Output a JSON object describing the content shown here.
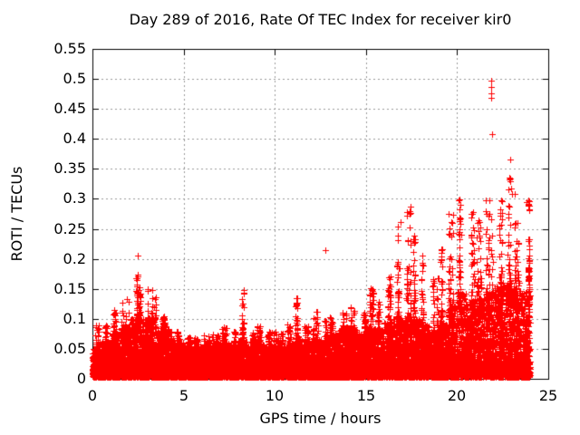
{
  "chart_data": {
    "type": "scatter",
    "title": "Day 289 of 2016, Rate Of TEC Index for receiver kir0",
    "xlabel": "GPS time / hours",
    "ylabel": "ROTI / TECUs",
    "xlim": [
      0,
      25
    ],
    "ylim": [
      0,
      0.55
    ],
    "xtick_values": [
      0,
      5,
      10,
      15,
      20,
      25
    ],
    "xtick_labels": [
      "0",
      "5",
      "10",
      "15",
      "20",
      "25"
    ],
    "ytick_values": [
      0,
      0.05,
      0.1,
      0.15,
      0.2,
      0.25,
      0.3,
      0.35,
      0.4,
      0.45,
      0.5,
      0.55
    ],
    "ytick_labels": [
      "0",
      "0.05",
      "0.1",
      "0.15",
      "0.2",
      "0.25",
      "0.3",
      "0.35",
      "0.4",
      "0.45",
      "0.5",
      "0.55"
    ],
    "grid": true,
    "grid_style": "dashed",
    "grid_color": "#999999",
    "frame_color": "#000000",
    "background": "#ffffff",
    "legend": false,
    "marker": "plus",
    "marker_size": 7,
    "marker_color": "#ff0000",
    "series_name": "ROTI",
    "data_model": {
      "description": "Dense GNSS ROTI scatter vs GPS time. Envelope per half-hour bin: [start_hour, dense_band_top_TECU, spike_max_TECU]. Values read from plot.",
      "bins": [
        [
          0.0,
          0.05,
          0.09
        ],
        [
          0.5,
          0.06,
          0.09
        ],
        [
          1.0,
          0.075,
          0.115
        ],
        [
          1.5,
          0.085,
          0.135
        ],
        [
          2.0,
          0.1,
          0.175
        ],
        [
          2.5,
          0.1,
          0.155
        ],
        [
          3.0,
          0.105,
          0.15
        ],
        [
          3.5,
          0.08,
          0.105
        ],
        [
          4.0,
          0.065,
          0.085
        ],
        [
          4.5,
          0.06,
          0.08
        ],
        [
          5.0,
          0.055,
          0.07
        ],
        [
          5.5,
          0.055,
          0.07
        ],
        [
          6.0,
          0.055,
          0.072
        ],
        [
          6.5,
          0.055,
          0.075
        ],
        [
          7.0,
          0.06,
          0.09
        ],
        [
          7.5,
          0.058,
          0.08
        ],
        [
          8.0,
          0.065,
          0.15
        ],
        [
          8.5,
          0.058,
          0.08
        ],
        [
          9.0,
          0.058,
          0.088
        ],
        [
          9.5,
          0.055,
          0.08
        ],
        [
          10.0,
          0.055,
          0.08
        ],
        [
          10.5,
          0.058,
          0.092
        ],
        [
          11.0,
          0.065,
          0.145
        ],
        [
          11.5,
          0.058,
          0.09
        ],
        [
          12.0,
          0.065,
          0.12
        ],
        [
          12.5,
          0.065,
          0.1
        ],
        [
          13.0,
          0.075,
          0.105
        ],
        [
          13.5,
          0.085,
          0.115
        ],
        [
          14.0,
          0.085,
          0.12
        ],
        [
          14.5,
          0.075,
          0.11
        ],
        [
          15.0,
          0.085,
          0.16
        ],
        [
          15.5,
          0.085,
          0.13
        ],
        [
          16.0,
          0.095,
          0.18
        ],
        [
          16.5,
          0.105,
          0.26
        ],
        [
          17.0,
          0.105,
          0.29
        ],
        [
          17.5,
          0.1,
          0.24
        ],
        [
          18.0,
          0.09,
          0.21
        ],
        [
          18.5,
          0.08,
          0.17
        ],
        [
          19.0,
          0.095,
          0.22
        ],
        [
          19.5,
          0.125,
          0.285
        ],
        [
          20.0,
          0.145,
          0.3
        ],
        [
          20.5,
          0.13,
          0.28
        ],
        [
          21.0,
          0.135,
          0.27
        ],
        [
          21.5,
          0.145,
          0.3
        ],
        [
          22.0,
          0.155,
          0.3
        ],
        [
          22.5,
          0.16,
          0.335
        ],
        [
          23.0,
          0.15,
          0.32
        ],
        [
          23.5,
          0.145,
          0.3
        ]
      ],
      "outliers": [
        [
          2.5,
          0.205
        ],
        [
          12.75,
          0.215
        ],
        [
          21.85,
          0.497
        ],
        [
          21.85,
          0.487
        ],
        [
          21.85,
          0.476
        ],
        [
          21.88,
          0.468
        ],
        [
          21.9,
          0.408
        ],
        [
          22.9,
          0.366
        ],
        [
          22.88,
          0.335
        ],
        [
          22.95,
          0.318
        ],
        [
          23.02,
          0.308
        ],
        [
          23.8,
          0.295
        ],
        [
          17.45,
          0.287
        ],
        [
          16.88,
          0.262
        ],
        [
          20.1,
          0.298
        ],
        [
          21.2,
          0.262
        ]
      ],
      "seed": 2016289,
      "band_points_per_bin": 260,
      "base_points_per_bin": 90,
      "spike_points_per_bin": 50,
      "t_start": 0.0,
      "t_end": 24.05
    }
  }
}
